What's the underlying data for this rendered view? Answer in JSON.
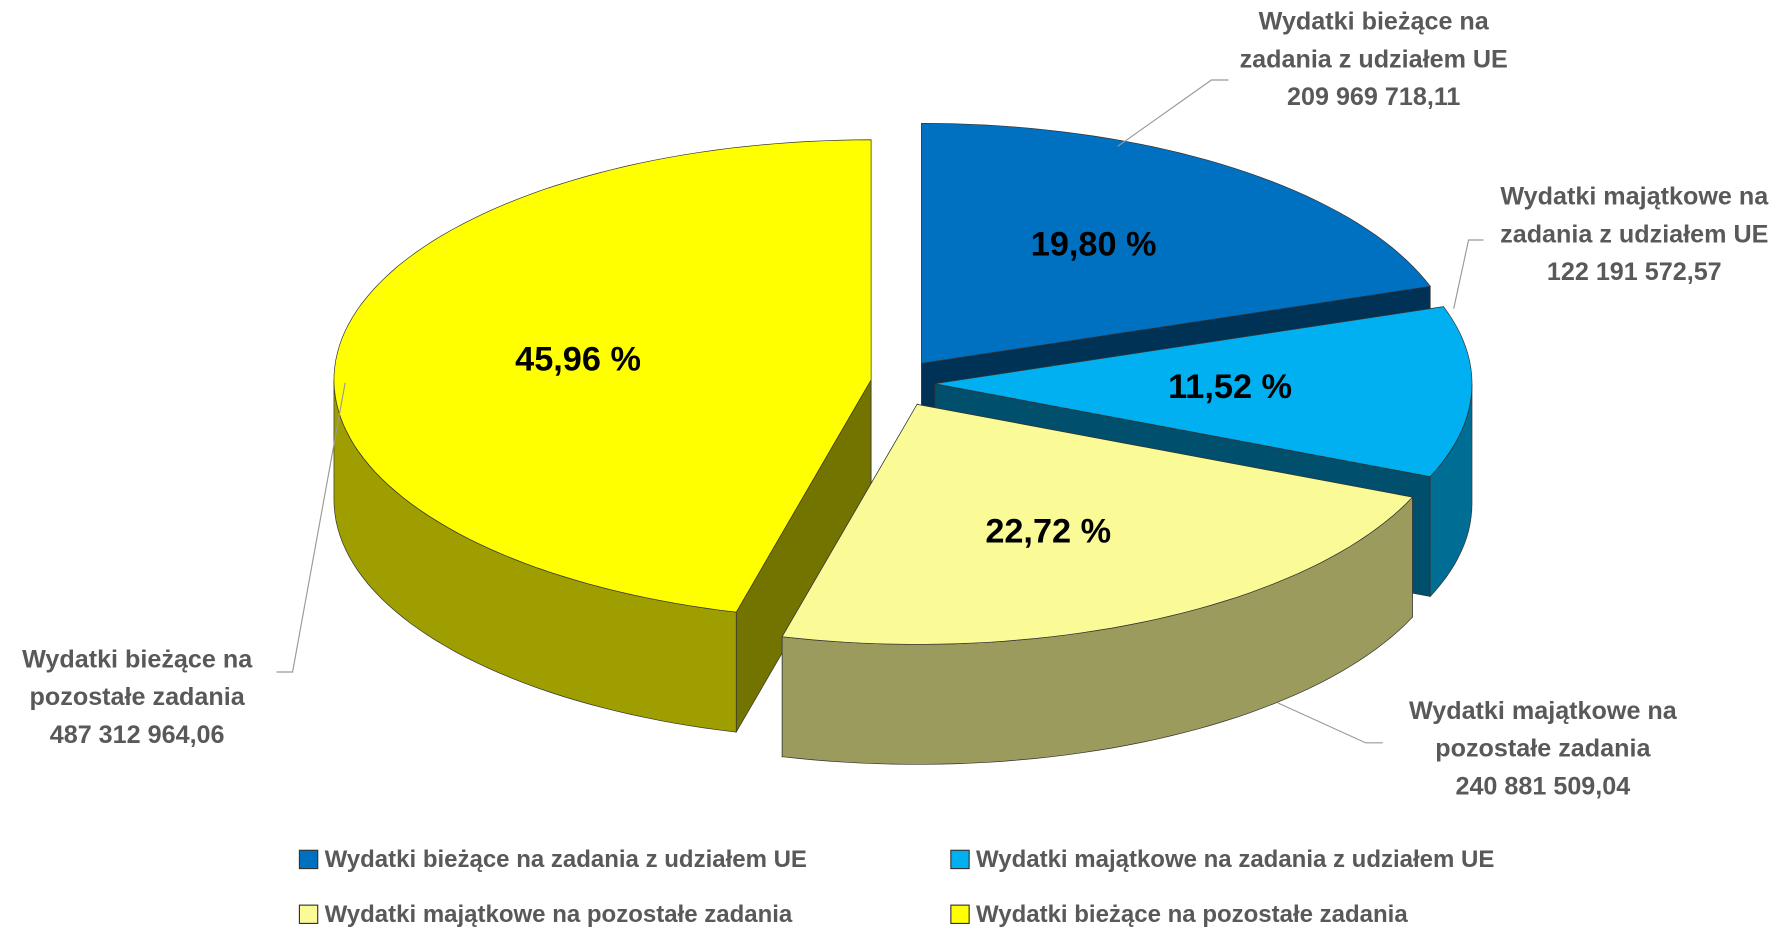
{
  "chart_data": {
    "type": "pie3d",
    "categories": [
      "Wydatki bieżące na zadania z udziałem UE",
      "Wydatki majątkowe na zadania z udziałem UE",
      "Wydatki majątkowe na pozostałe zadania",
      "Wydatki bieżące na pozostałe zadania"
    ],
    "values": [
      19.8,
      11.52,
      22.72,
      45.96
    ],
    "value_labels": [
      "19,80 %",
      "11,52 %",
      "22,72 %",
      "45,96 %"
    ],
    "amounts": [
      209969718.11,
      122191572.57,
      240881509.04,
      487312964.06
    ],
    "amount_labels": [
      "209 969 718,11",
      "122 191 572,57",
      "240 881 509,04",
      "487 312 964,06"
    ],
    "colors": [
      "#0070c0",
      "#00b0f0",
      "#fafa96",
      "#ffff00"
    ],
    "legend": "bottom"
  }
}
